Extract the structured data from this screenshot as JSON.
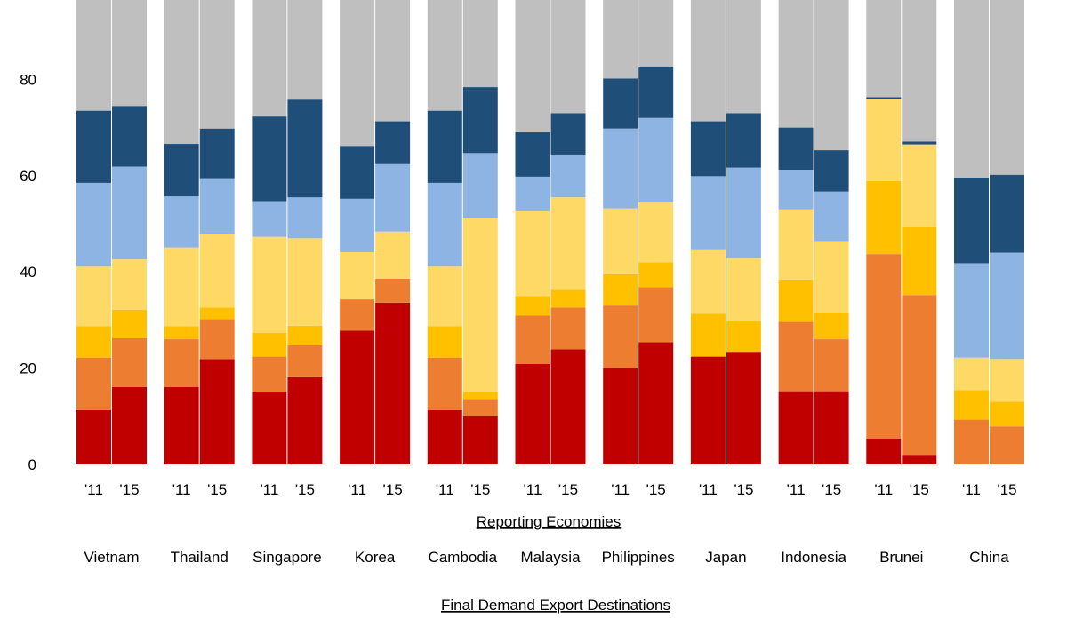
{
  "chart_data": {
    "type": "bar",
    "stacked": true,
    "title": "",
    "xlabel": "Reporting Economies",
    "footer_label": "Final Demand Export Destinations",
    "ylabel": "",
    "ylim": [
      0,
      100
    ],
    "yticks": [
      "0",
      "20",
      "40",
      "60",
      "80"
    ],
    "grid": false,
    "legend": "none",
    "groups": [
      "Vietnam",
      "Thailand",
      "Singapore",
      "Korea",
      "Cambodia",
      "Malaysia",
      "Philippines",
      "Japan",
      "Indonesia",
      "Brunei",
      "China"
    ],
    "categories": [
      "'11",
      "'15",
      "'11",
      "'15",
      "'11",
      "'15",
      "'11",
      "'15",
      "'11",
      "'15",
      "'11",
      "'15",
      "'11",
      "'15",
      "'11",
      "'15",
      "'11",
      "'15",
      "'11",
      "'15",
      "'11",
      "'15"
    ],
    "colors": [
      "#c00000",
      "#ed7d31",
      "#ffc000",
      "#ffd966",
      "#8db4e2",
      "#1f4e79",
      "#bfbfbf"
    ],
    "series": [
      {
        "values": [
          11.3,
          16.1,
          16.1,
          21.9,
          15.0,
          18.1,
          27.8,
          33.6,
          11.3,
          10.0,
          20.9,
          23.9,
          20.0,
          25.4,
          22.4,
          23.4,
          15.2,
          15.2,
          5.4,
          2.0,
          0,
          0
        ]
      },
      {
        "values": [
          10.9,
          10.1,
          9.9,
          8.3,
          7.4,
          6.7,
          6.5,
          5.0,
          10.9,
          3.6,
          10.0,
          8.7,
          13.0,
          11.4,
          0,
          0,
          14.4,
          10.8,
          38.3,
          33.2,
          9.3,
          7.9
        ]
      },
      {
        "values": [
          6.5,
          5.9,
          2.7,
          2.4,
          4.9,
          4.0,
          0,
          0,
          6.5,
          1.5,
          4.1,
          3.7,
          6.5,
          5.2,
          8.9,
          6.3,
          8.8,
          5.6,
          15.2,
          14.1,
          6.1,
          5.1
        ]
      },
      {
        "values": [
          12.4,
          10.5,
          16.4,
          15.3,
          20.0,
          18.2,
          9.8,
          9.8,
          12.4,
          36.1,
          17.6,
          19.2,
          13.7,
          12.4,
          13.4,
          13.2,
          14.6,
          14.8,
          17.0,
          17.2,
          6.8,
          8.9
        ]
      },
      {
        "values": [
          17.4,
          19.3,
          10.6,
          11.4,
          7.4,
          8.5,
          11.1,
          14.0,
          17.4,
          13.5,
          7.2,
          8.9,
          16.6,
          17.6,
          15.2,
          18.8,
          8.1,
          10.3,
          0,
          0,
          19.6,
          22.1
        ]
      },
      {
        "values": [
          15.0,
          12.6,
          10.9,
          10.5,
          17.6,
          20.3,
          11.0,
          8.9,
          15.0,
          13.7,
          9.2,
          8.6,
          10.4,
          10.7,
          11.4,
          11.3,
          8.9,
          8.6,
          0.4,
          0.6,
          17.8,
          16.2
        ]
      },
      {
        "values": [
          26.5,
          25.5,
          33.4,
          30.2,
          27.7,
          24.2,
          33.8,
          28.7,
          26.5,
          21.6,
          31.0,
          27.0,
          19.8,
          17.3,
          28.7,
          27.0,
          30.0,
          34.7,
          23.7,
          32.9,
          40.4,
          39.8
        ]
      }
    ]
  }
}
